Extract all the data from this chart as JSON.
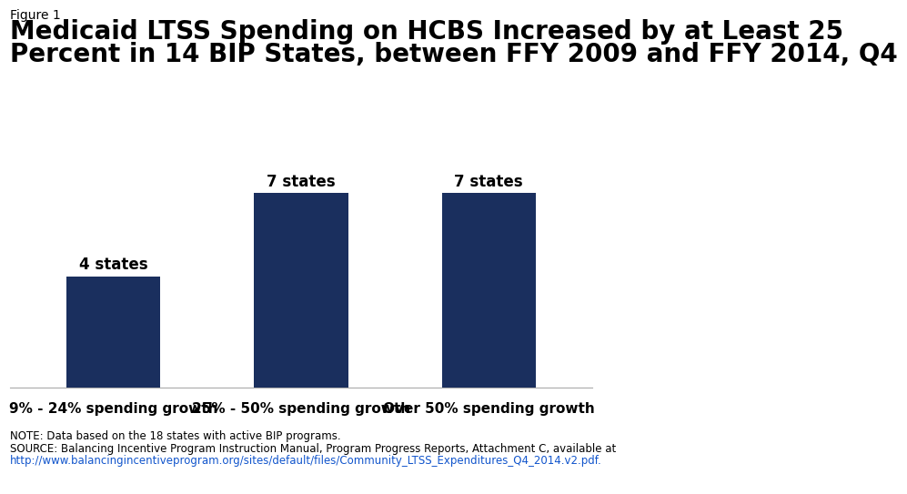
{
  "categories": [
    "9% - 24% spending growth",
    "25% - 50% spending growth",
    "Over 50% spending growth"
  ],
  "values": [
    4,
    7,
    7
  ],
  "labels": [
    "4 states",
    "7 states",
    "7 states"
  ],
  "bar_color": "#1a2f5e",
  "figure_label": "Figure 1",
  "title_line1": "Medicaid LTSS Spending on HCBS Increased by at Least 25",
  "title_line2": "Percent in 14 BIP States, between FFY 2009 and FFY 2014, Q4",
  "title_fontsize": 20,
  "figure_label_fontsize": 10,
  "note_line1": "NOTE: Data based on the 18 states with active BIP programs.",
  "note_line2": "SOURCE: Balancing Incentive Program Instruction Manual, Program Progress Reports, Attachment C, available at",
  "note_line3": "http://www.balancingincentiveprogram.org/sites/default/files/Community_LTSS_Expenditures_Q4_2014.v2.pdf.",
  "note_fontsize": 8.5,
  "background_color": "#ffffff",
  "ylim": [
    0,
    8.5
  ],
  "bar_label_fontsize": 12,
  "xtick_fontsize": 11,
  "bar_width": 0.5,
  "logo_color": "#1a3463"
}
